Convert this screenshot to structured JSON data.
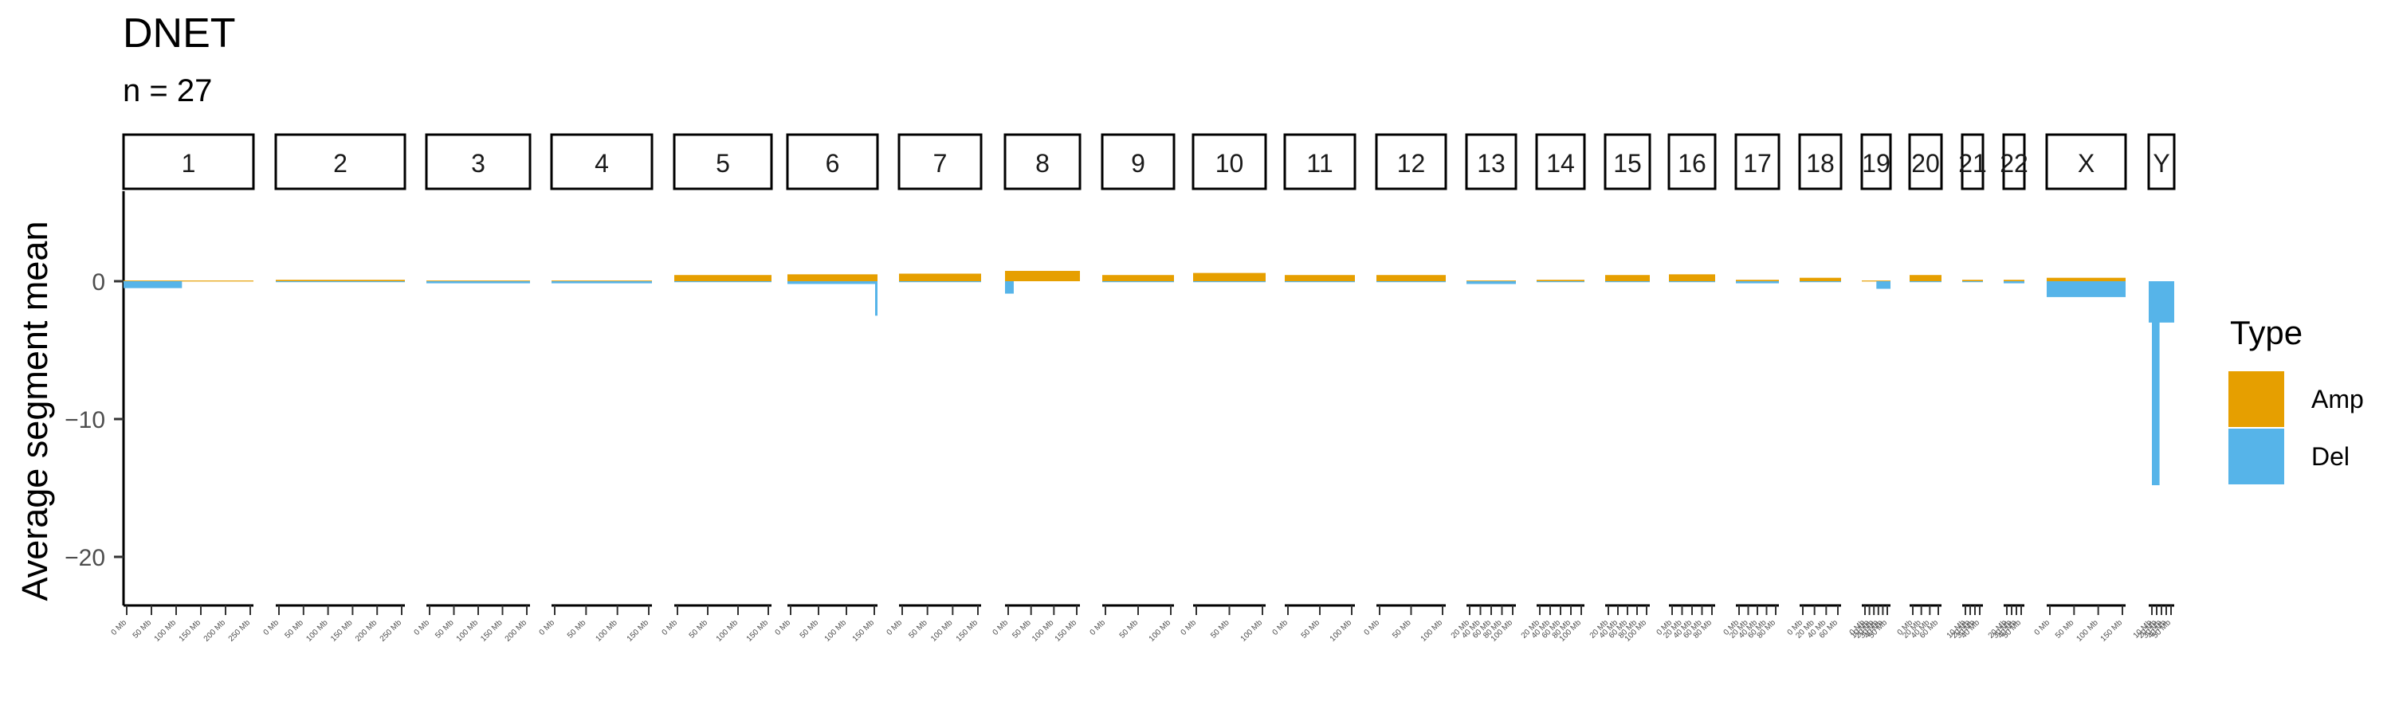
{
  "chart_data": {
    "type": "bar",
    "title": "DNET",
    "subtitle": "n = 27",
    "ylabel": "Average segment mean",
    "xlabel": "",
    "ylim": [
      -25,
      6.5
    ],
    "yticks": [
      0,
      -10,
      -20
    ],
    "grid": false,
    "legend": {
      "title": "Type",
      "position": "right",
      "entries": [
        {
          "label": "Amp",
          "color": "#E69F00"
        },
        {
          "label": "Del",
          "color": "#56B4E9"
        }
      ]
    },
    "facets": [
      {
        "chrom": "1",
        "length_mb": 249,
        "amp": 0.05,
        "del": -0.5,
        "del_end_mb": 112,
        "xticks": [
          "0 Mb",
          "50 Mb",
          "100 Mb",
          "150 Mb",
          "200 Mb",
          "250 Mb"
        ]
      },
      {
        "chrom": "2",
        "length_mb": 243,
        "amp": 0.1,
        "del": -0.05,
        "xticks": [
          "0 Mb",
          "50 Mb",
          "100 Mb",
          "150 Mb",
          "200 Mb",
          "250 Mb"
        ]
      },
      {
        "chrom": "3",
        "length_mb": 198,
        "amp": 0.05,
        "del": -0.15,
        "xticks": [
          "0 Mb",
          "50 Mb",
          "100 Mb",
          "150 Mb",
          "200 Mb"
        ]
      },
      {
        "chrom": "4",
        "length_mb": 191,
        "amp": 0.05,
        "del": -0.15,
        "xticks": [
          "0 Mb",
          "50 Mb",
          "100 Mb",
          "150 Mb"
        ]
      },
      {
        "chrom": "5",
        "length_mb": 181,
        "amp": 0.45,
        "del": -0.05,
        "xticks": [
          "0 Mb",
          "50 Mb",
          "100 Mb",
          "150 Mb"
        ]
      },
      {
        "chrom": "6",
        "length_mb": 171,
        "amp": 0.5,
        "del": -0.2,
        "spike_del": -2.5,
        "xticks": [
          "0 Mb",
          "50 Mb",
          "100 Mb",
          "150 Mb"
        ]
      },
      {
        "chrom": "7",
        "length_mb": 159,
        "amp": 0.55,
        "del": -0.05,
        "xticks": [
          "0 Mb",
          "50 Mb",
          "100 Mb",
          "150 Mb"
        ]
      },
      {
        "chrom": "8",
        "length_mb": 146,
        "amp": 0.75,
        "del": -0.9,
        "del_end_mb": 17,
        "xticks": [
          "0 Mb",
          "50 Mb",
          "100 Mb",
          "150 Mb"
        ]
      },
      {
        "chrom": "9",
        "length_mb": 141,
        "amp": 0.45,
        "del": -0.05,
        "xticks": [
          "0 Mb",
          "50 Mb",
          "100 Mb"
        ]
      },
      {
        "chrom": "10",
        "length_mb": 135,
        "amp": 0.6,
        "del": -0.05,
        "xticks": [
          "0 Mb",
          "50 Mb",
          "100 Mb"
        ]
      },
      {
        "chrom": "11",
        "length_mb": 135,
        "amp": 0.45,
        "del": -0.05,
        "xticks": [
          "0 Mb",
          "50 Mb",
          "100 Mb"
        ]
      },
      {
        "chrom": "12",
        "length_mb": 133,
        "amp": 0.45,
        "del": -0.05,
        "xticks": [
          "0 Mb",
          "50 Mb",
          "100 Mb"
        ]
      },
      {
        "chrom": "13",
        "length_mb": 115,
        "amp": 0.05,
        "del": -0.2,
        "xticks": [
          "20 Mb",
          "40 Mb",
          "60 Mb",
          "80 Mb",
          "100 Mb"
        ]
      },
      {
        "chrom": "14",
        "length_mb": 107,
        "amp": 0.1,
        "del": -0.05,
        "xticks": [
          "20 Mb",
          "40 Mb",
          "60 Mb",
          "80 Mb",
          "100 Mb"
        ]
      },
      {
        "chrom": "15",
        "length_mb": 102,
        "amp": 0.45,
        "del": -0.05,
        "xticks": [
          "20 Mb",
          "40 Mb",
          "60 Mb",
          "80 Mb",
          "100 Mb"
        ]
      },
      {
        "chrom": "16",
        "length_mb": 90,
        "amp": 0.5,
        "del": -0.05,
        "xticks": [
          "0 Mb",
          "20 Mb",
          "40 Mb",
          "60 Mb",
          "80 Mb"
        ]
      },
      {
        "chrom": "17",
        "length_mb": 81,
        "amp": 0.1,
        "del": -0.15,
        "xticks": [
          "0 Mb",
          "20 Mb",
          "40 Mb",
          "60 Mb",
          "80 Mb"
        ]
      },
      {
        "chrom": "18",
        "length_mb": 78,
        "amp": 0.25,
        "del": -0.05,
        "xticks": [
          "0 Mb",
          "20 Mb",
          "40 Mb",
          "60 Mb"
        ]
      },
      {
        "chrom": "19",
        "length_mb": 59,
        "amp": 0.05,
        "del": -0.55,
        "del_start_mb": 30,
        "xticks": [
          "0 Mb",
          "10 Mb",
          "20 Mb",
          "30 Mb",
          "40 Mb",
          "50 Mb"
        ]
      },
      {
        "chrom": "20",
        "length_mb": 64,
        "amp": 0.45,
        "del": -0.05,
        "xticks": [
          "0 Mb",
          "20 Mb",
          "40 Mb",
          "60 Mb"
        ]
      },
      {
        "chrom": "21",
        "length_mb": 48,
        "amp": 0.1,
        "del": -0.05,
        "xticks": [
          "10 Mb",
          "20 Mb",
          "30 Mb",
          "40 Mb"
        ]
      },
      {
        "chrom": "22",
        "length_mb": 51,
        "amp": 0.1,
        "del": -0.15,
        "xticks": [
          "20 Mb",
          "30 Mb",
          "40 Mb",
          "50 Mb"
        ]
      },
      {
        "chrom": "X",
        "length_mb": 155,
        "amp": 0.25,
        "del": -1.15,
        "xticks": [
          "0 Mb",
          "50 Mb",
          "100 Mb",
          "150 Mb"
        ]
      },
      {
        "chrom": "Y",
        "length_mb": 57,
        "amp": 0.0,
        "del": -3.0,
        "deep_del": -14.8,
        "xticks": [
          "10 Mb",
          "20 Mb",
          "30 Mb",
          "40 Mb",
          "50 Mb"
        ]
      }
    ]
  }
}
